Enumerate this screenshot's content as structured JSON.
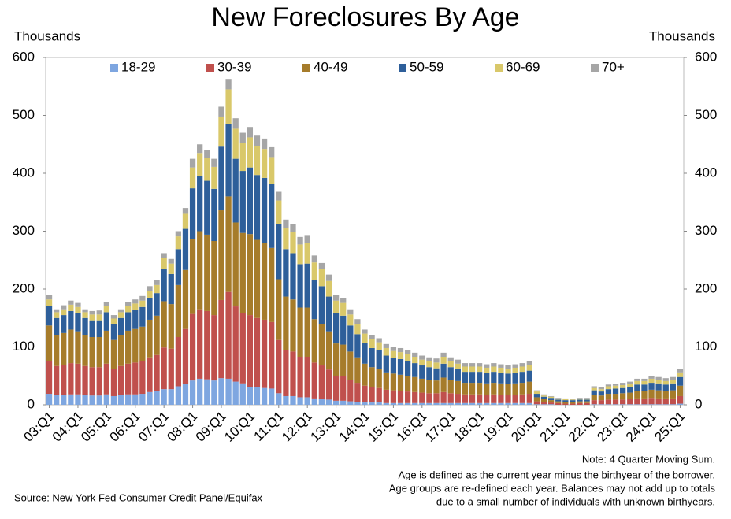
{
  "chart_data": {
    "type": "stacked_bar",
    "title": "New Foreclosures By Age",
    "y_label": "Thousands",
    "y2_label": "Thousands",
    "annotations": [
      "Note: 4 Quarter Moving Sum.",
      "Age is defined as the current year minus the birthyear of the borrower.",
      "Age groups are re-defined each year. Balances may not add up to totals",
      "due to a small number of individuals with unknown birthyears."
    ],
    "source": "Source: New York Fed Consumer Credit Panel/Equifax",
    "categories": [
      "03:Q1",
      null,
      null,
      null,
      "04:Q1",
      null,
      null,
      null,
      "05:Q1",
      null,
      null,
      null,
      "06:Q1",
      null,
      null,
      null,
      "07:Q1",
      null,
      null,
      null,
      "08:Q1",
      null,
      null,
      null,
      "09:Q1",
      null,
      null,
      null,
      "10:Q1",
      null,
      null,
      null,
      "11:Q1",
      null,
      null,
      null,
      "12:Q1",
      null,
      null,
      null,
      "13:Q1",
      null,
      null,
      null,
      "14:Q1",
      null,
      null,
      null,
      "15:Q1",
      null,
      null,
      null,
      "16:Q1",
      null,
      null,
      null,
      "17:Q1",
      null,
      null,
      null,
      "18:Q1",
      null,
      null,
      null,
      "19:Q1",
      null,
      null,
      null,
      "20:Q1",
      null,
      null,
      null,
      "21:Q1",
      null,
      null,
      null,
      "22:Q1",
      null,
      null,
      null,
      "23:Q1",
      null,
      null,
      null,
      "24:Q1",
      null,
      null,
      null,
      "25:Q1"
    ],
    "ylim": [
      0,
      600
    ],
    "yticks": [
      0,
      100,
      200,
      300,
      400,
      500,
      600
    ],
    "legend": "top",
    "series": [
      {
        "name": "18-29",
        "color": "#7ea6e0",
        "values": [
          19,
          17,
          17,
          18,
          18,
          17,
          16,
          16,
          18,
          15,
          17,
          18,
          18,
          19,
          22,
          24,
          27,
          27,
          32,
          36,
          42,
          45,
          44,
          42,
          46,
          45,
          40,
          37,
          30,
          30,
          29,
          28,
          20,
          15,
          15,
          13,
          13,
          11,
          10,
          9,
          7,
          7,
          6,
          5,
          4,
          4,
          4,
          3,
          3,
          3,
          3,
          3,
          3,
          3,
          3,
          3,
          3,
          3,
          3,
          3,
          3,
          3,
          3,
          3,
          3,
          3,
          3,
          3,
          1,
          1,
          1,
          0,
          0,
          0,
          0,
          0,
          1,
          1,
          1,
          1,
          1,
          1,
          1,
          1,
          1,
          1,
          1,
          1,
          2
        ]
      },
      {
        "name": "30-39",
        "color": "#c0504d",
        "values": [
          57,
          50,
          52,
          54,
          53,
          50,
          49,
          49,
          53,
          47,
          50,
          53,
          55,
          56,
          60,
          62,
          72,
          70,
          85,
          95,
          115,
          120,
          118,
          113,
          135,
          150,
          130,
          122,
          125,
          120,
          118,
          115,
          92,
          80,
          77,
          70,
          70,
          62,
          58,
          52,
          43,
          42,
          37,
          33,
          29,
          26,
          25,
          23,
          22,
          21,
          20,
          19,
          18,
          17,
          17,
          19,
          17,
          16,
          15,
          15,
          15,
          14,
          15,
          14,
          14,
          14,
          15,
          16,
          5,
          4,
          3,
          3,
          2,
          2,
          3,
          3,
          7,
          7,
          8,
          8,
          8,
          9,
          10,
          10,
          11,
          10,
          10,
          10,
          13
        ]
      },
      {
        "name": "40-49",
        "color": "#a67c2b",
        "values": [
          61,
          53,
          55,
          58,
          56,
          53,
          52,
          52,
          57,
          50,
          53,
          57,
          58,
          60,
          65,
          68,
          80,
          77,
          90,
          102,
          130,
          135,
          132,
          128,
          155,
          165,
          145,
          138,
          140,
          135,
          133,
          128,
          105,
          92,
          90,
          85,
          85,
          75,
          72,
          66,
          56,
          55,
          49,
          44,
          38,
          35,
          33,
          30,
          29,
          28,
          27,
          26,
          24,
          23,
          22,
          25,
          23,
          22,
          20,
          20,
          20,
          20,
          20,
          20,
          19,
          20,
          20,
          21,
          7,
          5,
          4,
          3,
          3,
          3,
          3,
          3,
          9,
          8,
          10,
          10,
          11,
          11,
          13,
          13,
          14,
          14,
          13,
          14,
          18
        ]
      },
      {
        "name": "50-59",
        "color": "#2e5f9a",
        "values": [
          34,
          30,
          31,
          32,
          32,
          30,
          29,
          29,
          32,
          28,
          30,
          32,
          33,
          34,
          37,
          39,
          55,
          52,
          62,
          71,
          87,
          95,
          93,
          90,
          110,
          125,
          110,
          107,
          115,
          112,
          112,
          110,
          95,
          82,
          80,
          75,
          76,
          68,
          65,
          60,
          52,
          50,
          45,
          40,
          36,
          33,
          32,
          29,
          27,
          27,
          26,
          24,
          23,
          22,
          21,
          24,
          22,
          21,
          19,
          19,
          19,
          18,
          19,
          18,
          18,
          18,
          19,
          19,
          6,
          4,
          4,
          3,
          3,
          3,
          3,
          3,
          8,
          7,
          8,
          9,
          9,
          10,
          11,
          11,
          12,
          12,
          11,
          12,
          15
        ]
      },
      {
        "name": "60-69",
        "color": "#d9c86a",
        "values": [
          11,
          10,
          10,
          11,
          10,
          10,
          10,
          10,
          11,
          9,
          10,
          11,
          11,
          11,
          13,
          14,
          20,
          18,
          22,
          26,
          36,
          40,
          39,
          38,
          52,
          60,
          52,
          49,
          52,
          50,
          50,
          47,
          41,
          37,
          36,
          34,
          35,
          30,
          29,
          27,
          22,
          22,
          19,
          18,
          16,
          15,
          14,
          13,
          12,
          12,
          12,
          11,
          10,
          10,
          10,
          12,
          10,
          9,
          9,
          9,
          9,
          9,
          9,
          9,
          8,
          9,
          9,
          10,
          4,
          2,
          2,
          2,
          2,
          1,
          2,
          2,
          4,
          4,
          5,
          5,
          5,
          5,
          6,
          6,
          7,
          6,
          6,
          6,
          8
        ]
      },
      {
        "name": "70+",
        "color": "#a6a6a6",
        "values": [
          8,
          5,
          7,
          7,
          7,
          5,
          6,
          7,
          7,
          6,
          5,
          7,
          7,
          8,
          8,
          8,
          8,
          8,
          9,
          10,
          15,
          15,
          14,
          14,
          17,
          18,
          18,
          17,
          18,
          18,
          18,
          17,
          15,
          14,
          14,
          13,
          13,
          12,
          11,
          11,
          10,
          9,
          9,
          8,
          7,
          7,
          7,
          7,
          7,
          7,
          7,
          7,
          7,
          7,
          7,
          7,
          7,
          7,
          6,
          6,
          6,
          6,
          6,
          6,
          6,
          6,
          6,
          6,
          2,
          2,
          1,
          1,
          1,
          1,
          1,
          1,
          3,
          3,
          3,
          3,
          4,
          4,
          4,
          4,
          5,
          5,
          5,
          5,
          6
        ]
      }
    ]
  }
}
